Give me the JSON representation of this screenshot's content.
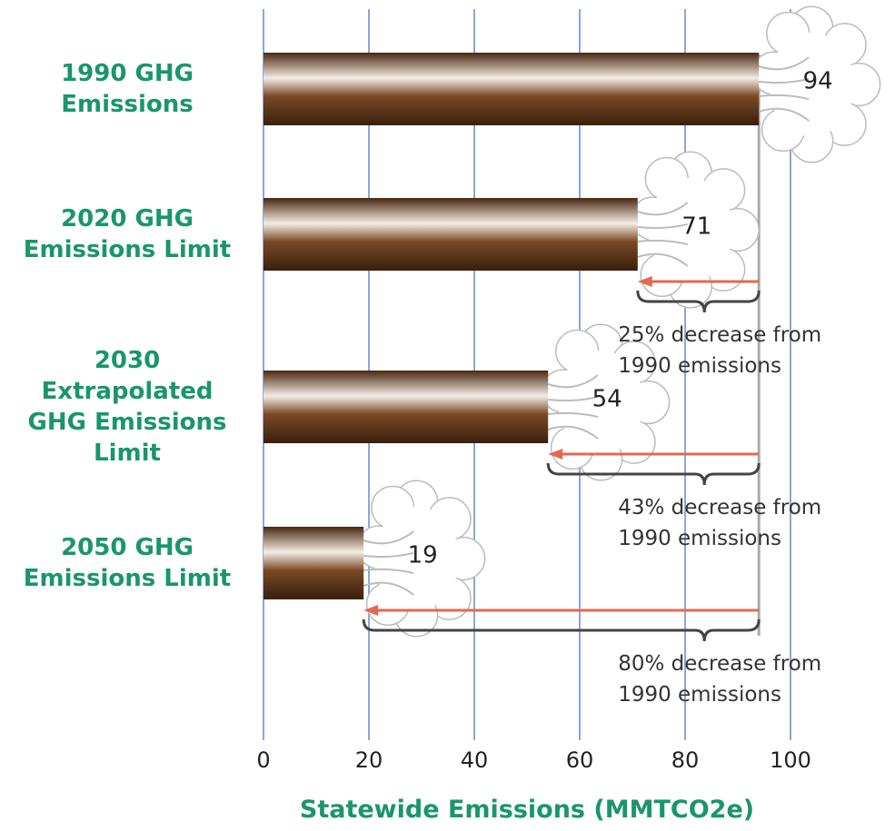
{
  "chart_data": {
    "type": "bar",
    "orientation": "horizontal",
    "categories": [
      "1990 GHG\nEmissions",
      "2020 GHG\nEmissions Limit",
      "2030\nExtrapolated\nGHG Emissions\nLimit",
      "2050 GHG\nEmissions Limit"
    ],
    "values": [
      94,
      71,
      54,
      19
    ],
    "color": "#5a3417",
    "xlim": [
      0,
      100
    ],
    "xticks": [
      0,
      20,
      40,
      60,
      80,
      100
    ],
    "grid": true,
    "x_label": "Statewide Emissions (MMTCO2e)",
    "annotations": [
      null,
      "25% decrease from\n1990 emissions",
      "43% decrease from\n1990 emissions",
      "80% decrease from\n1990 emissions"
    ]
  }
}
